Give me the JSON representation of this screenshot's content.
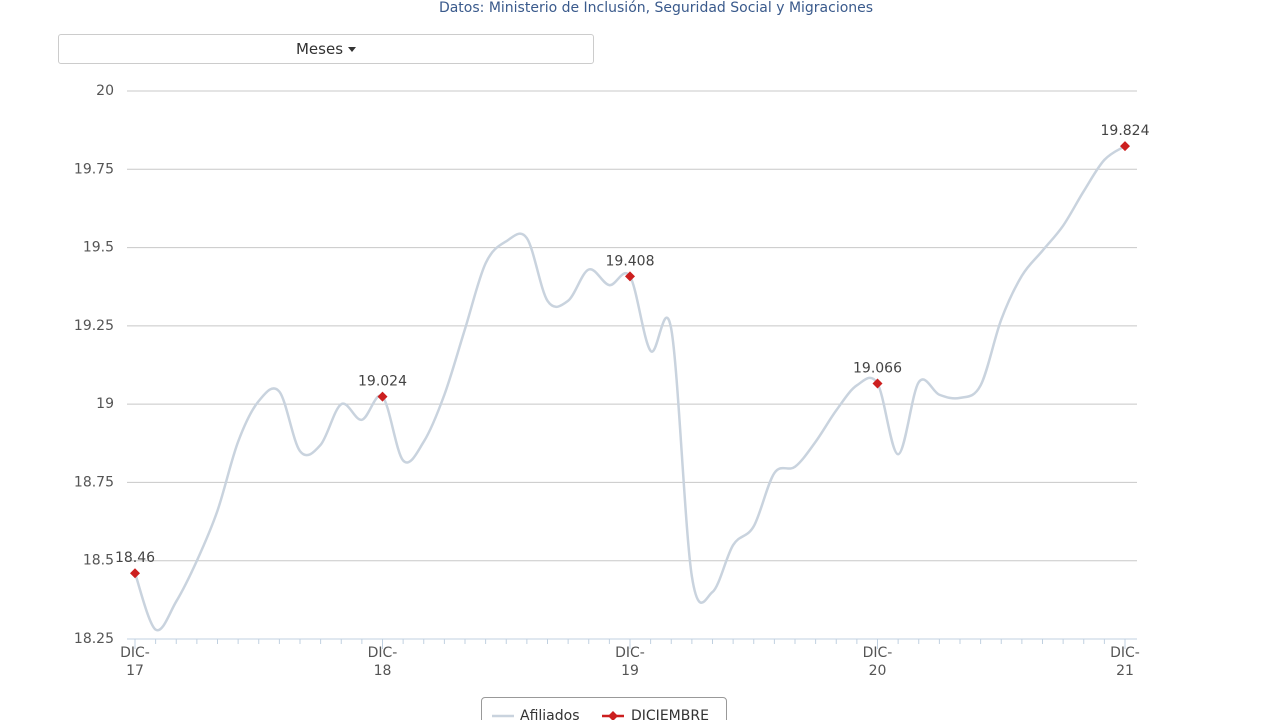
{
  "dropdown": {
    "label": "Meses"
  },
  "chart_data": {
    "type": "line",
    "subtitle": "Datos: Ministerio de Inclusión, Seguridad Social y Migraciones",
    "categories": [
      "DIC-\n17",
      null,
      null,
      null,
      null,
      null,
      null,
      null,
      null,
      null,
      null,
      null,
      "DIC-\n18",
      null,
      null,
      null,
      null,
      null,
      null,
      null,
      null,
      null,
      null,
      null,
      "DIC-\n19",
      null,
      null,
      null,
      null,
      null,
      null,
      null,
      null,
      null,
      null,
      null,
      "DIC-\n20",
      null,
      null,
      null,
      null,
      null,
      null,
      null,
      null,
      null,
      null,
      null,
      "DIC-\n21"
    ],
    "series": [
      {
        "name": "Afiliados",
        "color": "#c9d3de",
        "values": [
          18.46,
          18.28,
          18.37,
          18.5,
          18.66,
          18.88,
          19.01,
          19.04,
          18.85,
          18.87,
          19.0,
          18.95,
          19.024,
          18.82,
          18.88,
          19.03,
          19.24,
          19.45,
          19.52,
          19.53,
          19.33,
          19.33,
          19.43,
          19.38,
          19.408,
          19.17,
          19.24,
          18.45,
          18.4,
          18.55,
          18.61,
          18.78,
          18.8,
          18.88,
          18.98,
          19.06,
          19.066,
          18.84,
          19.07,
          19.03,
          19.02,
          19.06,
          19.27,
          19.41,
          19.49,
          19.57,
          19.68,
          19.78,
          19.824
        ]
      },
      {
        "name": "DICIEMBRE",
        "color": "#cc1f1f",
        "values": [
          18.46,
          null,
          null,
          null,
          null,
          null,
          null,
          null,
          null,
          null,
          null,
          null,
          19.024,
          null,
          null,
          null,
          null,
          null,
          null,
          null,
          null,
          null,
          null,
          null,
          19.408,
          null,
          null,
          null,
          null,
          null,
          null,
          null,
          null,
          null,
          null,
          null,
          19.066,
          null,
          null,
          null,
          null,
          null,
          null,
          null,
          null,
          null,
          null,
          null,
          19.824
        ]
      }
    ],
    "ylim": [
      18.25,
      20
    ],
    "yticks": [
      18.25,
      18.5,
      18.75,
      19,
      19.25,
      19.5,
      19.75,
      20
    ],
    "grid": true
  }
}
